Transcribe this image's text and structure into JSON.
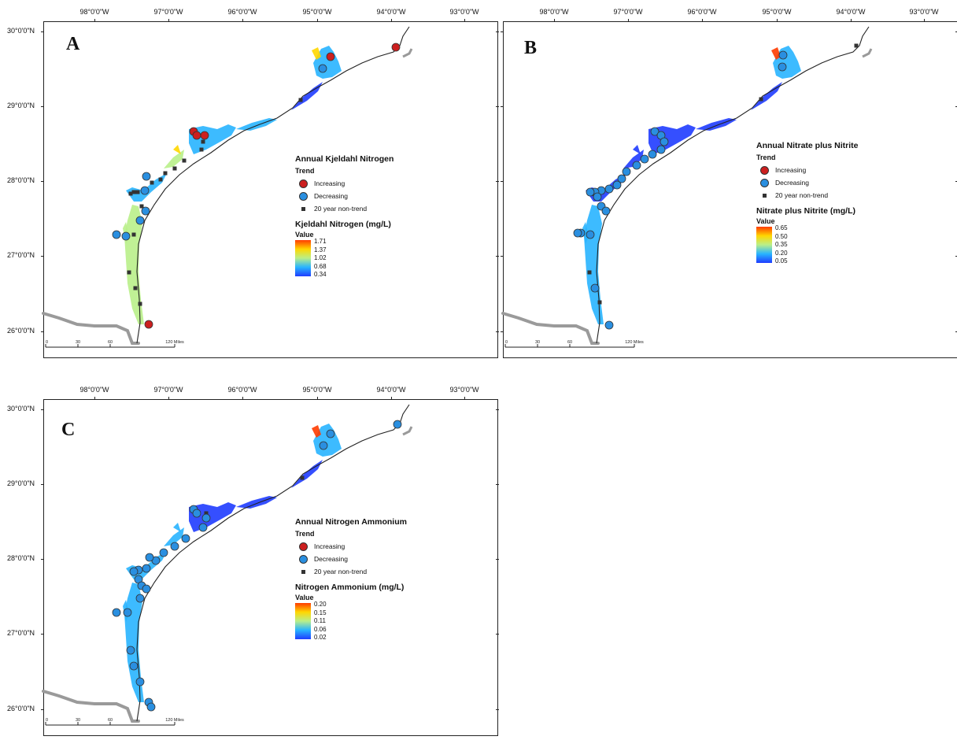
{
  "longitude_labels": [
    "98°0'0\"W",
    "97°0'0\"W",
    "96°0'0\"W",
    "95°0'0\"W",
    "94°0'0\"W",
    "93°0'0\"W"
  ],
  "latitude_labels": [
    "30°0'0\"N",
    "29°0'0\"N",
    "28°0'0\"N",
    "27°0'0\"N",
    "26°0'0\"N"
  ],
  "scale_bar": {
    "ticks": [
      "0",
      "30",
      "60",
      "120 Miles"
    ]
  },
  "trend_legend": {
    "heading": "Trend",
    "increasing": "Increasing",
    "decreasing": "Decreasing",
    "non_trend": "20 year non-trend"
  },
  "colors": {
    "increasing": "#cc1f1f",
    "decreasing": "#2a8fe0",
    "non_trend": "#333333",
    "ramp": [
      "#1f3cff",
      "#28b4ff",
      "#b9ef8a",
      "#ffd700",
      "#ff3c00"
    ],
    "coast": "#222222",
    "land_border": "#9a9a9a"
  },
  "panels": [
    {
      "id": "A",
      "letter": "A",
      "title": "Annual Kjeldahl Nitrogen",
      "unit_title": "Kjeldahl Nitrogen (mg/L)",
      "value_label": "Value",
      "ramp_ticks": [
        "1.71",
        "1.37",
        "1.02",
        "0.68",
        "0.34"
      ]
    },
    {
      "id": "B",
      "letter": "B",
      "title": "Annual Nitrate plus Nitrite",
      "unit_title": "Nitrate plus Nitrite (mg/L)",
      "value_label": "Value",
      "ramp_ticks": [
        "0.65",
        "0.50",
        "0.35",
        "0.20",
        "0.05"
      ]
    },
    {
      "id": "C",
      "letter": "C",
      "title": "Annual Nitrogen Ammonium",
      "unit_title": "Nitrogen Ammonium (mg/L)",
      "value_label": "Value",
      "ramp_ticks": [
        "0.20",
        "0.15",
        "0.11",
        "0.06",
        "0.02"
      ]
    }
  ]
}
